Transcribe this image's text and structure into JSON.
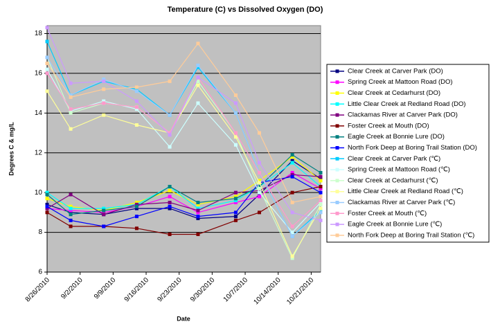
{
  "chart_data": {
    "type": "line",
    "title": "Temperature (C) vs Dissolved Oxygen (DO)",
    "xlabel": "Date",
    "ylabel": "Degrees C & mg/L",
    "x": [
      "8/26/2010",
      "8/31/2010",
      "9/7/2010",
      "9/14/2010",
      "9/21/2010",
      "9/27/2010",
      "10/5/2010",
      "10/10/2010",
      "10/17/2010",
      "10/23/2010"
    ],
    "xlim": [
      "8/26/2010",
      "10/23/2010"
    ],
    "xticks": [
      "8/26/2010",
      "9/2/2010",
      "9/9/2010",
      "9/16/2010",
      "9/23/2010",
      "9/30/2010",
      "10/7/2010",
      "10/14/2010",
      "10/21/2010"
    ],
    "ylim": [
      6,
      18.4
    ],
    "yticks": [
      6,
      8,
      10,
      12,
      14,
      16,
      18
    ],
    "grid": true,
    "plot_background": "#c0c0c0",
    "legend": "right",
    "series": [
      {
        "name": "Clear Creek at Carver Park (DO)",
        "color": "#000080",
        "values": [
          9.4,
          9.0,
          8.9,
          9.2,
          9.2,
          8.7,
          8.8,
          9.9,
          11.6,
          10.7
        ]
      },
      {
        "name": "Spring Creek at Mattoon Road (DO)",
        "color": "#ff00ff",
        "values": [
          9.2,
          9.1,
          9.0,
          9.3,
          9.8,
          9.0,
          9.5,
          9.8,
          11.0,
          10.2
        ]
      },
      {
        "name": "Clear Creek at Cedarhurst (DO)",
        "color": "#ffff00",
        "values": [
          9.7,
          9.3,
          9.1,
          9.5,
          10.1,
          9.4,
          9.8,
          10.6,
          11.8,
          10.6
        ]
      },
      {
        "name": "Little Clear Creek at Redland Road (DO)",
        "color": "#00ffff",
        "values": [
          10.0,
          9.2,
          9.2,
          9.4,
          10.3,
          9.2,
          9.6,
          10.3,
          11.5,
          10.3
        ]
      },
      {
        "name": "Clackamas River at Carver Park (DO)",
        "color": "#800080",
        "values": [
          9.2,
          9.9,
          8.9,
          9.4,
          9.5,
          9.1,
          10.0,
          10.1,
          10.9,
          10.8
        ]
      },
      {
        "name": "Foster Creek at Mouth (DO)",
        "color": "#800000",
        "values": [
          9.0,
          8.3,
          8.3,
          8.2,
          7.9,
          7.9,
          8.6,
          9.0,
          10.0,
          10.3
        ]
      },
      {
        "name": "Eagle Creek at Bonnie Lure (DO)",
        "color": "#008080",
        "values": [
          9.9,
          8.9,
          9.1,
          9.3,
          10.3,
          9.5,
          9.7,
          10.3,
          11.9,
          11.0
        ]
      },
      {
        "name": "North Fork Deep at Boring Trail Station (DO)",
        "color": "#0000ff",
        "values": [
          9.3,
          8.6,
          8.3,
          8.8,
          9.3,
          8.8,
          9.0,
          10.5,
          10.8,
          10.0
        ]
      },
      {
        "name": "Clear Creek at Carver Park (℃)",
        "color": "#00ccff",
        "values": [
          17.6,
          14.9,
          15.6,
          15.2,
          13.9,
          16.3,
          14.0,
          11.0,
          7.8,
          9.1
        ]
      },
      {
        "name": "Spring Creek at Mattoon Road (℃)",
        "color": "#ccffff",
        "values": [
          16.2,
          14.1,
          14.6,
          14.2,
          12.3,
          14.5,
          12.4,
          10.0,
          8.0,
          9.5
        ]
      },
      {
        "name": "Clear Creek at Cedarhurst (℃)",
        "color": "#ccffcc",
        "values": [
          16.8,
          14.0,
          14.5,
          14.3,
          13.0,
          15.6,
          13.0,
          10.2,
          6.7,
          9.4
        ]
      },
      {
        "name": "Little Clear Creek at Redland Road (℃)",
        "color": "#ffff99",
        "values": [
          15.1,
          13.2,
          13.9,
          13.4,
          13.0,
          15.4,
          12.8,
          10.5,
          6.8,
          9.2
        ]
      },
      {
        "name": "Clackamas River at Carver Park (℃)",
        "color": "#99ccff",
        "values": [
          16.8,
          14.9,
          15.7,
          15.1,
          13.9,
          16.4,
          14.0,
          11.0,
          7.8,
          9.0
        ]
      },
      {
        "name": "Foster Creek at Mouth (℃)",
        "color": "#ff99cc",
        "values": [
          16.0,
          14.2,
          14.5,
          14.3,
          13.0,
          15.8,
          13.0,
          11.0,
          8.3,
          9.6
        ]
      },
      {
        "name": "Eagle Creek at Bonnie Lure (℃)",
        "color": "#cc99ff",
        "values": [
          18.3,
          15.5,
          15.6,
          14.6,
          12.9,
          15.8,
          14.5,
          11.5,
          9.0,
          8.6
        ]
      },
      {
        "name": "North Fork Deep at Boring Trail Station (℃)",
        "color": "#ffcc99",
        "values": [
          16.5,
          14.8,
          15.2,
          15.3,
          15.6,
          17.5,
          14.9,
          13.0,
          9.5,
          9.8
        ]
      }
    ]
  }
}
